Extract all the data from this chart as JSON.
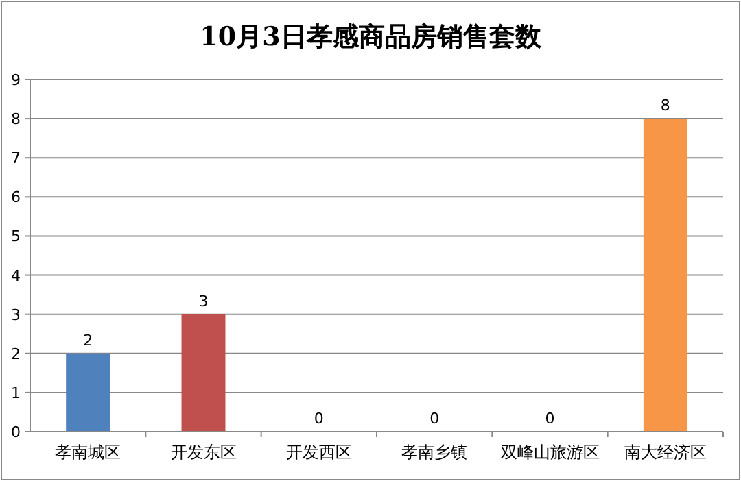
{
  "chart_data": {
    "type": "bar",
    "title": "10月3日孝感商品房销售套数",
    "categories": [
      "孝南城区",
      "开发东区",
      "开发西区",
      "孝南乡镇",
      "双峰山旅游区",
      "南大经济区"
    ],
    "values": [
      2,
      3,
      0,
      0,
      0,
      8
    ],
    "colors": [
      "#4f81bd",
      "#c0504d",
      "#9bbb59",
      "#8064a2",
      "#4bacc6",
      "#f79646"
    ],
    "ylim": [
      0,
      9
    ],
    "yticks": [
      0,
      1,
      2,
      3,
      4,
      5,
      6,
      7,
      8,
      9
    ],
    "grid": "y",
    "data_labels": true
  }
}
